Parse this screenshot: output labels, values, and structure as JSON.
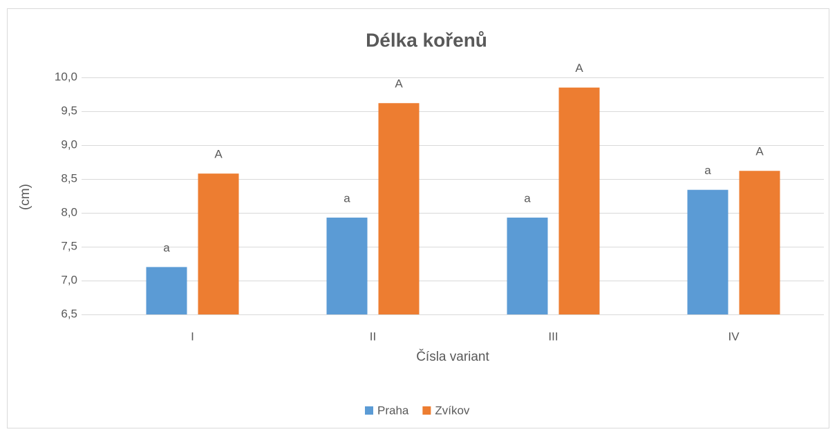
{
  "chart_data": {
    "type": "bar",
    "title": "Délka kořenů",
    "x_label": "Čísla variant",
    "y_label": "(cm)",
    "categories": [
      "I",
      "II",
      "III",
      "IV"
    ],
    "series": [
      {
        "name": "Praha",
        "color": "#5b9bd5",
        "values": [
          7.2,
          7.93,
          7.93,
          8.34
        ],
        "letters": [
          "a",
          "a",
          "a",
          "a"
        ]
      },
      {
        "name": "Zvíkov",
        "color": "#ed7d31",
        "values": [
          8.58,
          9.62,
          9.85,
          8.62
        ],
        "letters": [
          "A",
          "A",
          "A",
          "A"
        ]
      }
    ],
    "ylim": [
      6.5,
      10.0
    ],
    "yticks": [
      {
        "value": 6.5,
        "label": "6,5"
      },
      {
        "value": 7.0,
        "label": "7,0"
      },
      {
        "value": 7.5,
        "label": "7,5"
      },
      {
        "value": 8.0,
        "label": "8,0"
      },
      {
        "value": 8.5,
        "label": "8,5"
      },
      {
        "value": 9.0,
        "label": "9,0"
      },
      {
        "value": 9.5,
        "label": "9,5"
      },
      {
        "value": 10.0,
        "label": "10,0"
      }
    ],
    "grid": true,
    "legend": "bottom"
  }
}
